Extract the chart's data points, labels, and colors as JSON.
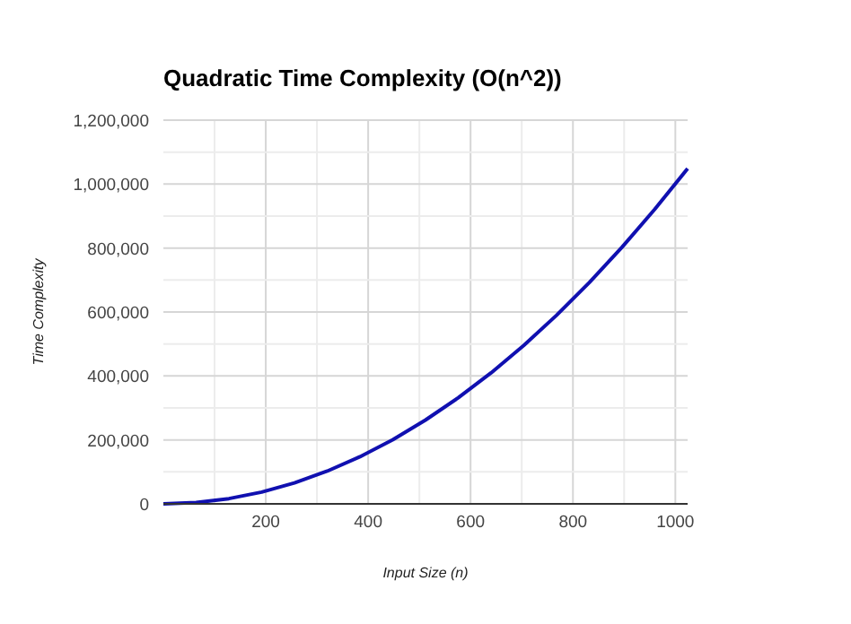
{
  "chart_data": {
    "type": "line",
    "title": "Quadratic Time Complexity (O(n^2))",
    "xlabel": "Input Size (n)",
    "ylabel": "Time Complexity",
    "x": [
      0,
      64,
      128,
      192,
      256,
      320,
      384,
      448,
      512,
      576,
      640,
      704,
      768,
      832,
      896,
      960,
      1024
    ],
    "series": [
      {
        "color": "#1010b0",
        "values": [
          0,
          4096,
          16384,
          36864,
          65536,
          102400,
          147456,
          200704,
          262144,
          331776,
          409600,
          495616,
          589824,
          692224,
          802816,
          921600,
          1048576
        ]
      }
    ],
    "xlim": [
      0,
      1024
    ],
    "xticks": [
      {
        "value": 100,
        "label": null
      },
      200,
      {
        "value": 300,
        "label": null
      },
      400,
      {
        "value": 500,
        "label": null
      },
      600,
      {
        "value": 700,
        "label": null
      },
      800,
      {
        "value": 900,
        "label": null
      },
      1000
    ],
    "ylim": [
      0,
      1200000
    ],
    "yticks": [
      {
        "value": 0,
        "label": "0"
      },
      {
        "value": 100000,
        "label": null
      },
      {
        "value": 200000,
        "label": "200,000"
      },
      {
        "value": 300000,
        "label": null
      },
      {
        "value": 400000,
        "label": "400,000"
      },
      {
        "value": 500000,
        "label": null
      },
      {
        "value": 600000,
        "label": "600,000"
      },
      {
        "value": 700000,
        "label": null
      },
      {
        "value": 800000,
        "label": "800,000"
      },
      {
        "value": 900000,
        "label": null
      },
      {
        "value": 1000000,
        "label": "1,000,000"
      },
      {
        "value": 1100000,
        "label": null
      },
      {
        "value": 1200000,
        "label": "1,200,000"
      }
    ],
    "grid": true,
    "marker": "none",
    "line_style": "solid"
  }
}
